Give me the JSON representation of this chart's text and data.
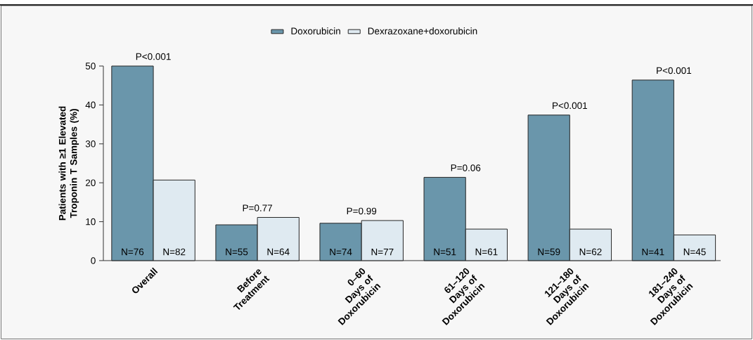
{
  "chart_data": {
    "type": "bar",
    "ylabel": "Patients with ≥1 Elevated Troponin T Samples (%)",
    "categories": [
      "Overall",
      "Before Treatment",
      "0–60 Days of Doxorubicin",
      "61–120 Days of Doxorubicin",
      "121–180 Days of Doxorubicin",
      "181–240 Days of Doxorubicin"
    ],
    "series": [
      {
        "name": "Doxorubicin",
        "color": "#6a96ab",
        "values": [
          50,
          9.2,
          9.6,
          21.4,
          37.4,
          46.4
        ]
      },
      {
        "name": "Dexrazoxane+doxorubicin",
        "color": "#dfeaf1",
        "values": [
          20.7,
          11.1,
          10.3,
          8.1,
          8.1,
          6.6
        ]
      }
    ],
    "ylim": [
      0,
      50
    ],
    "yticks": [
      0,
      10,
      20,
      30,
      40,
      50
    ],
    "legend": "top",
    "annotations": [
      "P<0.001",
      "N=76",
      "N=82",
      "P=0.77",
      "N=55",
      "N=64",
      "P=0.99",
      "N=74",
      "N=77",
      "P=0.06",
      "N=51",
      "N=61",
      "P<0.001",
      "N=59",
      "N=62",
      "P<0.001",
      "N=41",
      "N=45"
    ]
  }
}
